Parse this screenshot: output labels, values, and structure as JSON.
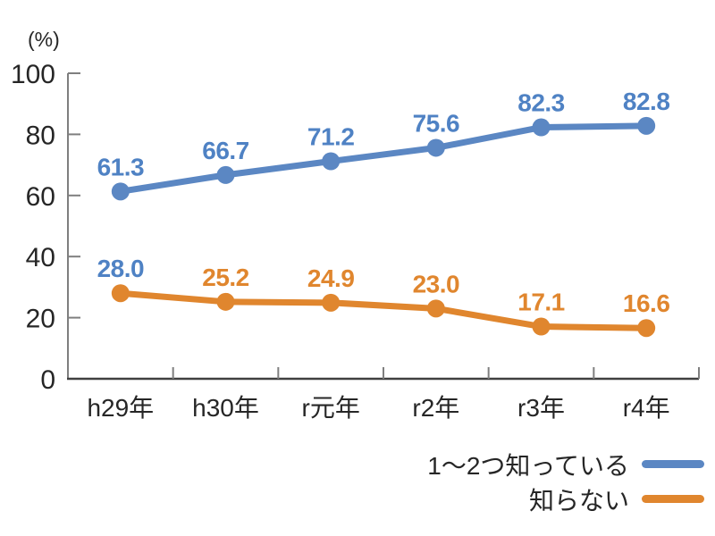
{
  "chart_data": {
    "type": "line",
    "unit": "(%)",
    "categories": [
      "h29年",
      "h30年",
      "r元年",
      "r2年",
      "r3年",
      "r4年"
    ],
    "series": [
      {
        "name": "1〜2つ知っている",
        "color": "#5b87c3",
        "values": [
          61.3,
          66.7,
          71.2,
          75.6,
          82.3,
          82.8
        ],
        "label_colors": [
          "#4f82c4",
          "#4f82c4",
          "#4f82c4",
          "#4f82c4",
          "#4f82c4",
          "#4f82c4"
        ]
      },
      {
        "name": "知らない",
        "color": "#e0862e",
        "values": [
          28.0,
          25.2,
          24.9,
          23.0,
          17.1,
          16.6
        ],
        "label_colors": [
          "#4f82c4",
          "#e0862e",
          "#e0862e",
          "#e0862e",
          "#e0862e",
          "#e0862e"
        ]
      }
    ],
    "xlabel": "",
    "ylabel": "(%)",
    "ylim": [
      0,
      100
    ],
    "yticks": [
      0,
      20,
      40,
      60,
      80,
      100
    ],
    "grid": false,
    "legend_position": "bottom-right",
    "data_labels": true,
    "axis_color": "#404040",
    "tick_color": "#7f7f7f",
    "text_color": "#262626"
  }
}
